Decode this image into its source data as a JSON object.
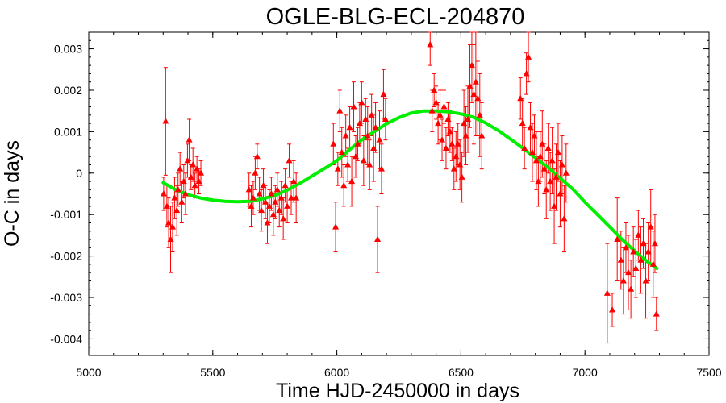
{
  "chart_data": {
    "type": "scatter",
    "title": "OGLE-BLG-ECL-204870",
    "xlabel": "Time HJD-2450000 in days",
    "ylabel": "O-C in days",
    "xlim": [
      5000,
      7500
    ],
    "ylim": [
      -0.0044,
      0.0034
    ],
    "xticks": [
      5000,
      5500,
      6000,
      6500,
      7000,
      7500
    ],
    "yticks": [
      -0.004,
      -0.003,
      -0.002,
      -0.001,
      0,
      0.001,
      0.002,
      0.003
    ],
    "xtick_labels": [
      "5000",
      "5500",
      "6000",
      "6500",
      "7000",
      "7500"
    ],
    "ytick_labels": [
      "-0.004",
      "-0.003",
      "-0.002",
      "-0.001",
      "0",
      "0.001",
      "0.002",
      "0.003"
    ],
    "grid": false,
    "colors": {
      "points": "#ff0000",
      "fit": "#00ee00",
      "axes": "#000000"
    },
    "series": [
      {
        "kind": "points-with-errorbars",
        "x": [
          5302,
          5310,
          5315,
          5322,
          5330,
          5338,
          5346,
          5355,
          5360,
          5368,
          5375,
          5383,
          5390,
          5398,
          5405,
          5412,
          5420,
          5428,
          5436,
          5444,
          5452,
          5646,
          5655,
          5663,
          5671,
          5679,
          5688,
          5696,
          5704,
          5712,
          5720,
          5728,
          5736,
          5744,
          5752,
          5760,
          5768,
          5776,
          5784,
          5792,
          5800,
          5808,
          5816,
          5826,
          5836,
          5986,
          5995,
          6004,
          6012,
          6020,
          6028,
          6036,
          6044,
          6052,
          6060,
          6068,
          6076,
          6084,
          6092,
          6100,
          6108,
          6116,
          6124,
          6132,
          6140,
          6148,
          6156,
          6164,
          6172,
          6180,
          6188,
          6196,
          6376,
          6384,
          6392,
          6400,
          6408,
          6416,
          6424,
          6432,
          6440,
          6448,
          6456,
          6464,
          6472,
          6480,
          6488,
          6496,
          6504,
          6512,
          6520,
          6528,
          6536,
          6544,
          6552,
          6560,
          6568,
          6576,
          6584,
          6740,
          6748,
          6756,
          6764,
          6772,
          6780,
          6788,
          6796,
          6804,
          6812,
          6820,
          6828,
          6836,
          6844,
          6852,
          6860,
          6868,
          6876,
          6884,
          6892,
          6900,
          6908,
          6916,
          6924,
          7090,
          7110,
          7130,
          7145,
          7155,
          7165,
          7175,
          7185,
          7195,
          7205,
          7215,
          7225,
          7235,
          7245,
          7255,
          7265,
          7275,
          7282,
          7288
        ],
        "y": [
          -0.0005,
          0.00125,
          -0.0008,
          -0.0012,
          -0.0016,
          -0.0013,
          -0.0006,
          -0.0009,
          -0.0004,
          0.0001,
          -0.0007,
          -0.0002,
          -0.0005,
          0.0003,
          0.0008,
          -0.0001,
          0.0002,
          -0.0003,
          0.0001,
          -0.0002,
          0.0,
          -0.0004,
          -0.0008,
          -0.0006,
          0.0,
          0.0004,
          -0.0005,
          -0.0009,
          -0.0003,
          -0.0007,
          -0.0012,
          -0.0008,
          -0.0005,
          -0.001,
          -0.0007,
          -0.0004,
          -0.0009,
          -0.0006,
          -0.0011,
          -0.0003,
          -0.0008,
          0.0003,
          -0.0006,
          -0.0002,
          -0.0006,
          0.0007,
          -0.0013,
          0.0001,
          0.0015,
          0.0005,
          -0.0003,
          0.0009,
          0.0002,
          0.0011,
          -0.0002,
          0.0016,
          0.0004,
          0.0007,
          0.0012,
          0.0017,
          0.0003,
          0.0013,
          0.0009,
          0.0002,
          0.0014,
          0.0006,
          0.0011,
          -0.0016,
          0.0008,
          0.0001,
          0.0019,
          0.0013,
          0.0031,
          0.0015,
          0.002,
          0.0017,
          0.0012,
          0.0014,
          0.0008,
          0.0016,
          0.0006,
          0.0013,
          0.001,
          0.0007,
          0.0001,
          0.0004,
          0.0007,
          0.0002,
          -0.0001,
          0.0012,
          0.0009,
          0.0013,
          0.0021,
          0.0026,
          0.0019,
          0.0022,
          0.0018,
          0.0014,
          0.0009,
          0.0018,
          0.0012,
          0.0006,
          0.0024,
          0.0028,
          0.0011,
          0.0005,
          0.0009,
          0.0003,
          -0.0002,
          0.0004,
          0.0007,
          0.0001,
          -0.0004,
          0.0006,
          -0.0002,
          0.0003,
          -0.0008,
          -0.0001,
          0.0005,
          -0.0005,
          0.0002,
          -0.0011,
          0.0,
          -0.0029,
          -0.0033,
          -0.0016,
          -0.0021,
          -0.0026,
          -0.0018,
          -0.0024,
          -0.0028,
          -0.0019,
          -0.0023,
          -0.0015,
          -0.0021,
          -0.0017,
          -0.0026,
          -0.0019,
          -0.0013,
          -0.0022,
          -0.0017,
          -0.0034
        ],
        "err": [
          0.0004,
          0.0013,
          0.0005,
          0.0006,
          0.0008,
          0.0006,
          0.0005,
          0.0006,
          0.0004,
          0.0004,
          0.0005,
          0.0004,
          0.0005,
          0.0004,
          0.0005,
          0.0003,
          0.0004,
          0.0003,
          0.0003,
          0.0003,
          0.0003,
          0.0004,
          0.0005,
          0.0004,
          0.0004,
          0.0003,
          0.0004,
          0.0005,
          0.0004,
          0.0004,
          0.0005,
          0.0004,
          0.0004,
          0.0005,
          0.0004,
          0.0004,
          0.0004,
          0.0004,
          0.0005,
          0.0004,
          0.0004,
          0.0004,
          0.0004,
          0.0005,
          0.0006,
          0.0005,
          0.0006,
          0.0004,
          0.0005,
          0.0006,
          0.0005,
          0.0005,
          0.0004,
          0.0005,
          0.0006,
          0.0006,
          0.0005,
          0.0004,
          0.0005,
          0.0005,
          0.0006,
          0.0005,
          0.0007,
          0.0006,
          0.0005,
          0.0008,
          0.0006,
          0.0008,
          0.0007,
          0.0006,
          0.0006,
          0.0005,
          0.0005,
          0.0005,
          0.0004,
          0.0004,
          0.0005,
          0.0006,
          0.0005,
          0.0004,
          0.0005,
          0.0004,
          0.0005,
          0.0004,
          0.0005,
          0.0006,
          0.0005,
          0.0006,
          0.0006,
          0.0008,
          0.0007,
          0.0008,
          0.001,
          0.0009,
          0.0012,
          0.0013,
          0.0009,
          0.001,
          0.0008,
          0.0005,
          0.0006,
          0.0005,
          0.0005,
          0.0006,
          0.0006,
          0.0007,
          0.0005,
          0.0007,
          0.0006,
          0.0006,
          0.0008,
          0.0006,
          0.0007,
          0.0006,
          0.0007,
          0.0008,
          0.0009,
          0.0008,
          0.0007,
          0.0008,
          0.0007,
          0.0008,
          0.0007,
          0.0012,
          0.0004,
          0.001,
          0.0007,
          0.0008,
          0.0006,
          0.0009,
          0.0007,
          0.0006,
          0.0007,
          0.0006,
          0.0008,
          0.0006,
          0.0009,
          0.0007,
          0.0009,
          0.0008,
          0.0007,
          0.0004
        ]
      },
      {
        "kind": "fit-curve",
        "x": [
          5300,
          5350,
          5400,
          5450,
          5500,
          5550,
          5600,
          5650,
          5700,
          5750,
          5800,
          5850,
          5900,
          5950,
          6000,
          6050,
          6100,
          6150,
          6200,
          6250,
          6300,
          6350,
          6400,
          6450,
          6500,
          6550,
          6600,
          6650,
          6700,
          6750,
          6800,
          6850,
          6900,
          6950,
          7000,
          7050,
          7100,
          7150,
          7200,
          7250,
          7290
        ],
        "y": [
          -0.00023,
          -0.0004,
          -0.00052,
          -0.0006,
          -0.00065,
          -0.00068,
          -0.00069,
          -0.00068,
          -0.00062,
          -0.00054,
          -0.00041,
          -0.00025,
          -7e-05,
          0.00011,
          0.0003,
          0.00056,
          0.0008,
          0.001,
          0.00119,
          0.00134,
          0.00145,
          0.0015,
          0.0015,
          0.00148,
          0.00143,
          0.00135,
          0.00121,
          0.00103,
          0.00082,
          0.0006,
          0.00037,
          0.00014,
          -0.00012,
          -0.00038,
          -0.0007,
          -0.001,
          -0.0013,
          -0.0016,
          -0.00188,
          -0.00213,
          -0.0023
        ]
      }
    ]
  }
}
